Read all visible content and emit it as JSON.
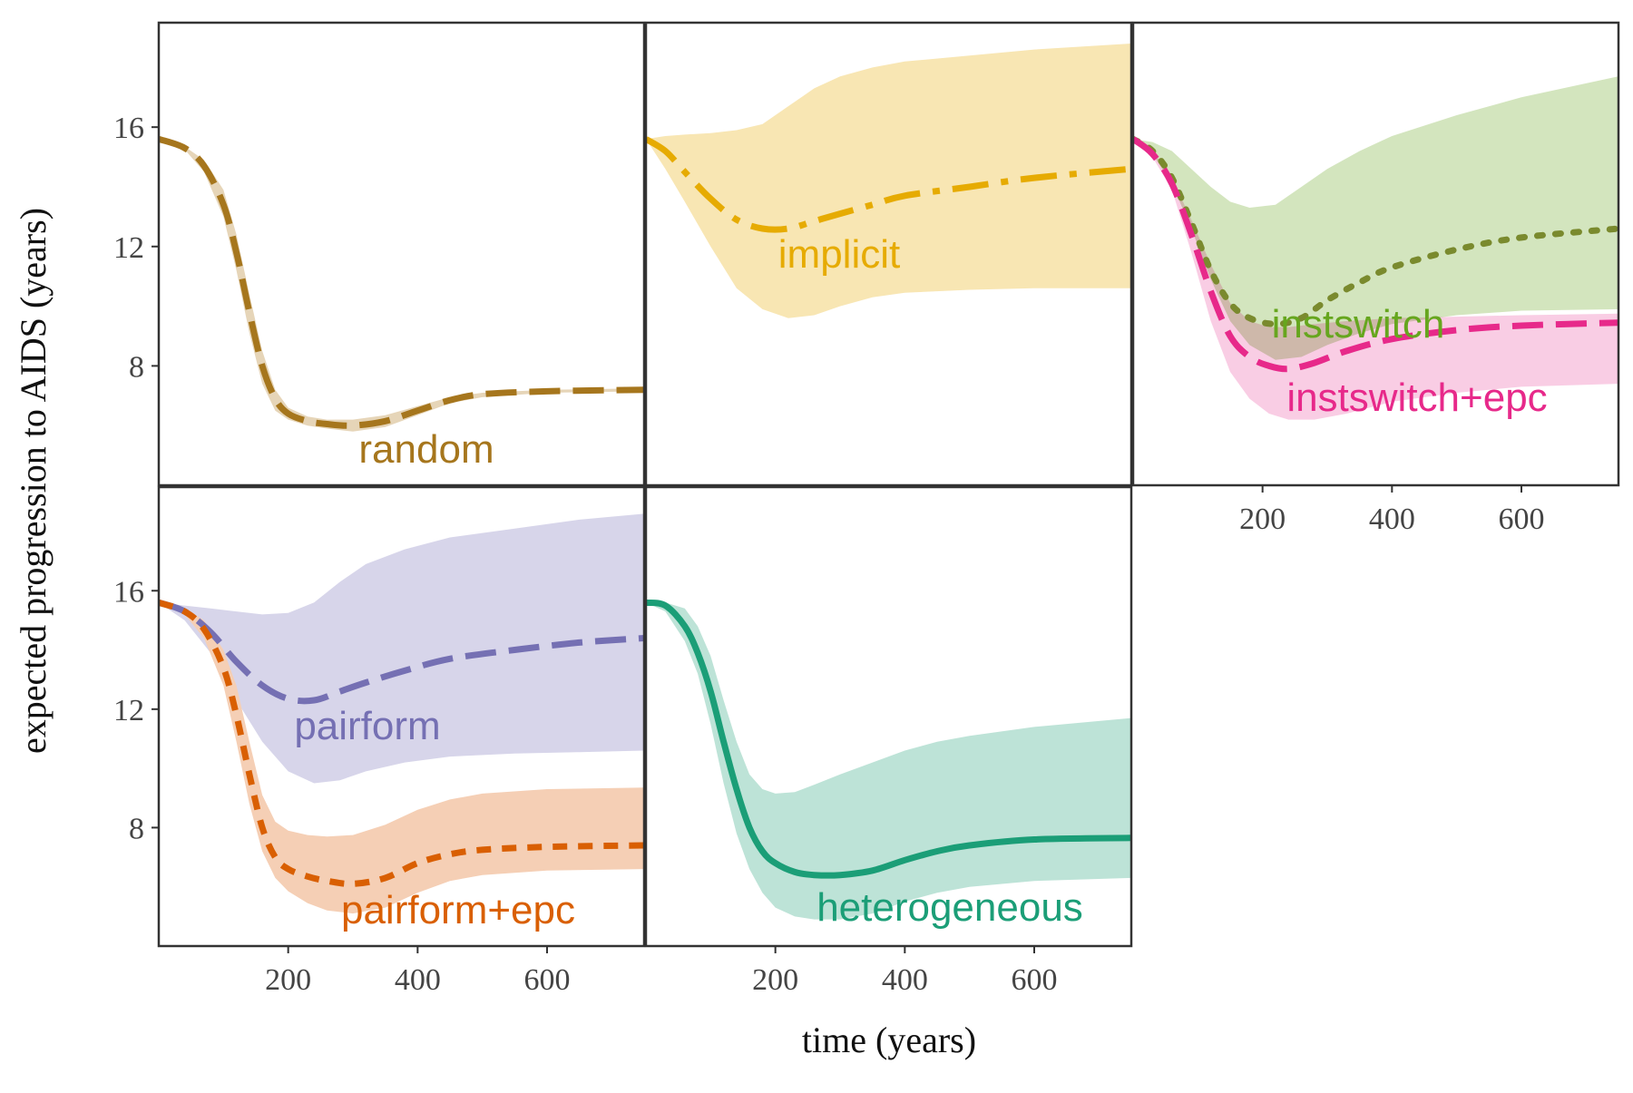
{
  "chart_data": {
    "type": "line",
    "xlabel": "time (years)",
    "ylabel": "expected progression to AIDS (years)",
    "xlim": [
      0,
      750
    ],
    "ylim": [
      4,
      19.5
    ],
    "x_ticks": [
      200,
      400,
      600
    ],
    "y_ticks": [
      8,
      12,
      16
    ],
    "panels": [
      {
        "id": "random",
        "series": [
          {
            "name": "random",
            "color": "#A6761D",
            "band_color": "#E6D5B8",
            "dash": "long",
            "x": [
              0,
              40,
              70,
              100,
              120,
              140,
              160,
              180,
              200,
              230,
              260,
              300,
              350,
              400,
              450,
              500,
              600,
              750
            ],
            "y": [
              15.6,
              15.3,
              14.7,
              13.4,
              11.8,
              9.8,
              8.0,
              6.9,
              6.4,
              6.15,
              6.05,
              6.0,
              6.15,
              6.5,
              6.85,
              7.05,
              7.15,
              7.2
            ],
            "lower": [
              15.6,
              15.25,
              14.5,
              13.0,
              11.2,
              9.1,
              7.4,
              6.5,
              6.2,
              6.0,
              5.9,
              5.8,
              5.95,
              6.35,
              6.75,
              6.95,
              7.1,
              7.15
            ],
            "upper": [
              15.6,
              15.35,
              14.9,
              13.9,
              12.4,
              10.4,
              8.5,
              7.2,
              6.6,
              6.3,
              6.2,
              6.2,
              6.35,
              6.65,
              6.95,
              7.1,
              7.2,
              7.25
            ]
          }
        ]
      },
      {
        "id": "implicit",
        "series": [
          {
            "name": "implicit",
            "color": "#E6AB02",
            "band_color": "#F8E6B3",
            "dash": "dashdot",
            "x": [
              0,
              30,
              60,
              100,
              140,
              180,
              220,
              260,
              300,
              350,
              400,
              500,
              600,
              750
            ],
            "y": [
              15.6,
              15.2,
              14.5,
              13.6,
              12.9,
              12.6,
              12.6,
              12.85,
              13.1,
              13.4,
              13.7,
              14.0,
              14.3,
              14.6
            ],
            "lower": [
              15.6,
              14.6,
              13.5,
              12.0,
              10.6,
              9.9,
              9.6,
              9.7,
              10.0,
              10.3,
              10.45,
              10.55,
              10.6,
              10.6
            ],
            "upper": [
              15.6,
              15.7,
              15.75,
              15.8,
              15.9,
              16.1,
              16.7,
              17.3,
              17.7,
              18.0,
              18.2,
              18.4,
              18.6,
              18.8
            ]
          }
        ]
      },
      {
        "id": "instswitch",
        "series": [
          {
            "name": "instswitch",
            "color": "#66A61E",
            "line_color": "#7A8A2E",
            "band_color": "#D3E5BE",
            "dash": "dotted",
            "x": [
              0,
              30,
              60,
              90,
              120,
              150,
              180,
              220,
              260,
              300,
              350,
              400,
              500,
              600,
              750
            ],
            "y": [
              15.6,
              15.2,
              14.3,
              12.8,
              11.2,
              10.1,
              9.6,
              9.4,
              9.6,
              10.2,
              10.8,
              11.3,
              11.9,
              12.3,
              12.6
            ],
            "lower": [
              15.6,
              15.1,
              14.1,
              12.6,
              10.9,
              9.5,
              8.7,
              8.2,
              8.3,
              8.7,
              9.1,
              9.4,
              9.7,
              9.85,
              9.9
            ],
            "upper": [
              15.6,
              15.5,
              15.2,
              14.6,
              14.0,
              13.5,
              13.3,
              13.4,
              14.0,
              14.6,
              15.2,
              15.7,
              16.4,
              17.0,
              17.7
            ]
          },
          {
            "name": "instswitch+epc",
            "color": "#E7298A",
            "line_color": "#E7298A",
            "band_color": "#F7BCDB",
            "dash": "long",
            "x": [
              0,
              30,
              60,
              90,
              120,
              150,
              180,
              210,
              240,
              280,
              330,
              400,
              500,
              600,
              750
            ],
            "y": [
              15.6,
              15.1,
              14.1,
              12.4,
              10.5,
              9.0,
              8.3,
              8.0,
              7.9,
              8.1,
              8.5,
              8.9,
              9.2,
              9.35,
              9.45
            ],
            "lower": [
              15.6,
              15.0,
              13.9,
              11.8,
              9.5,
              7.8,
              6.9,
              6.4,
              6.2,
              6.2,
              6.4,
              6.8,
              7.1,
              7.3,
              7.4
            ],
            "upper": [
              15.6,
              15.2,
              14.3,
              12.9,
              11.4,
              10.1,
              9.5,
              9.3,
              9.3,
              9.4,
              9.5,
              9.6,
              9.65,
              9.7,
              9.75
            ]
          }
        ],
        "overlap_color": "#C7B39F"
      },
      {
        "id": "pairform",
        "series": [
          {
            "name": "pairform",
            "color": "#7570B3",
            "band_color": "#D7D5EA",
            "dash": "long",
            "x": [
              0,
              40,
              80,
              120,
              160,
              200,
              240,
              280,
              320,
              380,
              450,
              550,
              650,
              750
            ],
            "y": [
              15.6,
              15.3,
              14.6,
              13.6,
              12.8,
              12.35,
              12.3,
              12.6,
              12.9,
              13.3,
              13.7,
              14.0,
              14.25,
              14.4
            ],
            "lower": [
              15.6,
              15.0,
              13.9,
              12.3,
              10.9,
              9.9,
              9.5,
              9.6,
              9.9,
              10.2,
              10.4,
              10.5,
              10.55,
              10.6
            ],
            "upper": [
              15.6,
              15.5,
              15.4,
              15.3,
              15.2,
              15.25,
              15.6,
              16.3,
              16.9,
              17.4,
              17.8,
              18.1,
              18.4,
              18.6
            ]
          },
          {
            "name": "pairform+epc",
            "color": "#D95F02",
            "band_color": "#F5CFB5",
            "dash": "short",
            "x": [
              0,
              40,
              70,
              100,
              120,
              140,
              160,
              180,
              200,
              230,
              260,
              300,
              350,
              400,
              450,
              500,
              600,
              750
            ],
            "y": [
              15.6,
              15.3,
              14.7,
              13.4,
              11.8,
              9.8,
              8.0,
              7.0,
              6.6,
              6.35,
              6.2,
              6.1,
              6.3,
              6.8,
              7.1,
              7.25,
              7.35,
              7.4
            ],
            "lower": [
              15.6,
              15.2,
              14.4,
              12.8,
              10.9,
              8.8,
              7.2,
              6.3,
              5.85,
              5.45,
              5.2,
              5.1,
              5.3,
              5.8,
              6.2,
              6.4,
              6.55,
              6.6
            ],
            "upper": [
              15.6,
              15.4,
              15.0,
              14.0,
              12.8,
              10.9,
              9.1,
              8.2,
              7.9,
              7.75,
              7.7,
              7.75,
              8.1,
              8.6,
              8.95,
              9.15,
              9.3,
              9.35
            ]
          }
        ]
      },
      {
        "id": "heterogeneous",
        "series": [
          {
            "name": "heterogeneous",
            "color": "#1B9E77",
            "band_color": "#BDE3D7",
            "dash": "solid",
            "x": [
              0,
              30,
              60,
              80,
              100,
              120,
              140,
              160,
              180,
              200,
              230,
              260,
              300,
              350,
              400,
              450,
              500,
              600,
              750
            ],
            "y": [
              15.6,
              15.5,
              14.8,
              13.9,
              12.6,
              10.9,
              9.3,
              8.0,
              7.2,
              6.8,
              6.5,
              6.4,
              6.4,
              6.55,
              6.9,
              7.2,
              7.4,
              7.6,
              7.65
            ],
            "lower": [
              15.6,
              15.3,
              14.3,
              13.2,
              11.5,
              9.5,
              7.8,
              6.6,
              5.8,
              5.3,
              5.0,
              4.9,
              4.9,
              5.1,
              5.5,
              5.8,
              6.0,
              6.2,
              6.3
            ],
            "upper": [
              15.6,
              15.6,
              15.4,
              14.8,
              13.8,
              12.3,
              10.9,
              9.8,
              9.3,
              9.15,
              9.2,
              9.45,
              9.8,
              10.2,
              10.6,
              10.9,
              11.1,
              11.4,
              11.7
            ]
          }
        ]
      }
    ]
  }
}
